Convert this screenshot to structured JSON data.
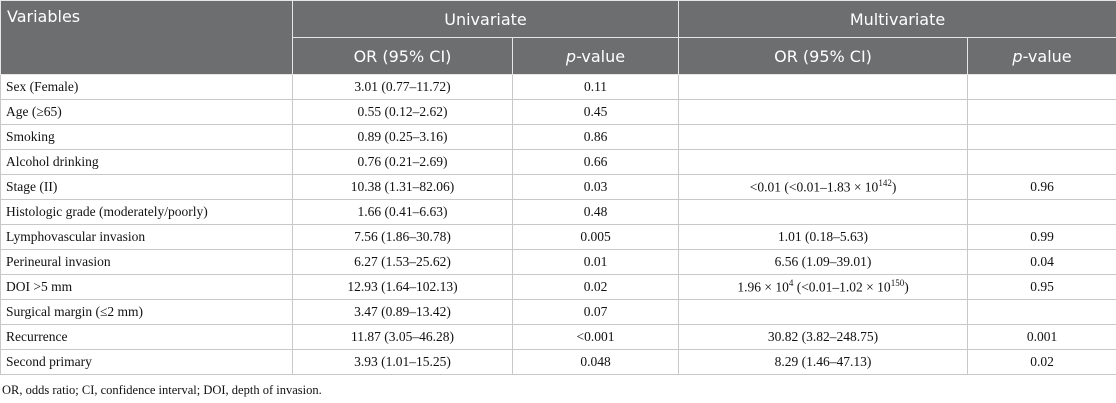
{
  "table": {
    "header": {
      "variables": "Variables",
      "groups": [
        "Univariate",
        "Multivariate"
      ],
      "columns": [
        [
          "OR (95% CI)"
        ],
        [
          {
            "italic": "p"
          },
          {
            "text": "-value"
          }
        ],
        [
          "OR (95% CI)"
        ],
        [
          {
            "italic": "p"
          },
          {
            "text": "-value"
          }
        ]
      ]
    },
    "rows": [
      [
        "Sex (Female)",
        "3.01 (0.77–11.72)",
        "0.11",
        null,
        null
      ],
      [
        "Age (≥65)",
        "0.55 (0.12–2.62)",
        "0.45",
        null,
        null
      ],
      [
        "Smoking",
        "0.89 (0.25–3.16)",
        "0.86",
        null,
        null
      ],
      [
        "Alcohol drinking",
        "0.76 (0.21–2.69)",
        "0.66",
        null,
        null
      ],
      [
        "Stage (II)",
        "10.38 (1.31–82.06)",
        "0.03",
        [
          {
            "text": "<0.01 (<0.01–1.83 × 10"
          },
          {
            "sup": "142"
          },
          {
            "text": ")"
          }
        ],
        "0.96"
      ],
      [
        "Histologic grade (moderately/poorly)",
        "1.66 (0.41–6.63)",
        "0.48",
        null,
        null
      ],
      [
        "Lymphovascular invasion",
        "7.56 (1.86–30.78)",
        "0.005",
        "1.01 (0.18–5.63)",
        "0.99"
      ],
      [
        "Perineural invasion",
        "6.27 (1.53–25.62)",
        "0.01",
        "6.56 (1.09–39.01)",
        "0.04"
      ],
      [
        "DOI >5 mm",
        "12.93 (1.64–102.13)",
        "0.02",
        [
          {
            "text": "1.96 × 10"
          },
          {
            "sup": "4"
          },
          {
            "text": " (<0.01–1.02 × 10"
          },
          {
            "sup": "150"
          },
          {
            "text": ")"
          }
        ],
        "0.95"
      ],
      [
        "Surgical margin (≤2 mm)",
        "3.47 (0.89–13.42)",
        "0.07",
        null,
        null
      ],
      [
        "Recurrence",
        "11.87 (3.05–46.28)",
        "<0.001",
        "30.82 (3.82–248.75)",
        "0.001"
      ],
      [
        "Second primary",
        "3.93 (1.01–15.25)",
        "0.048",
        "8.29 (1.46–47.13)",
        "0.02"
      ]
    ]
  },
  "footnote": "OR, odds ratio; CI, confidence interval; DOI, depth of invasion."
}
